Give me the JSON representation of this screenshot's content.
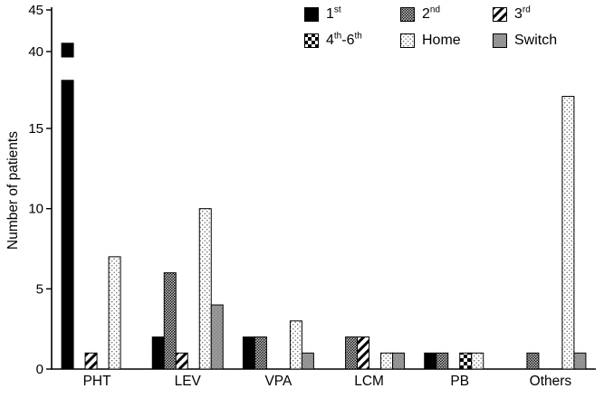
{
  "chart_data": {
    "type": "bar",
    "title": "",
    "ylabel": "Number of patients",
    "categories": [
      "PHT",
      "LEV",
      "VPA",
      "LCM",
      "PB",
      "Others"
    ],
    "series": [
      {
        "key": "1st",
        "label_parts": [
          {
            "t": "1"
          },
          {
            "t": "st",
            "sup": true
          }
        ],
        "pattern": "solid-black",
        "values": [
          41,
          2,
          2,
          0,
          1,
          0
        ]
      },
      {
        "key": "2nd",
        "label_parts": [
          {
            "t": "2"
          },
          {
            "t": "nd",
            "sup": true
          }
        ],
        "pattern": "dark-stipple",
        "values": [
          0,
          6,
          2,
          2,
          1,
          1
        ]
      },
      {
        "key": "3rd",
        "label_parts": [
          {
            "t": "3"
          },
          {
            "t": "rd",
            "sup": true
          }
        ],
        "pattern": "diagonal-hatch",
        "values": [
          1,
          1,
          0,
          2,
          0,
          0
        ]
      },
      {
        "key": "4th-6th",
        "label_parts": [
          {
            "t": "4"
          },
          {
            "t": "th",
            "sup": true
          },
          {
            "t": "-6"
          },
          {
            "t": "th",
            "sup": true
          }
        ],
        "pattern": "checkerboard",
        "values": [
          0,
          0,
          0,
          0,
          1,
          0
        ]
      },
      {
        "key": "Home",
        "label_parts": [
          {
            "t": "Home"
          }
        ],
        "pattern": "light-stipple",
        "values": [
          7,
          10,
          3,
          1,
          1,
          17
        ]
      },
      {
        "key": "Switch",
        "label_parts": [
          {
            "t": "Switch"
          }
        ],
        "pattern": "gray",
        "values": [
          0,
          4,
          1,
          1,
          0,
          1
        ]
      }
    ],
    "y_axis": {
      "lower_ticks": [
        0,
        5,
        10,
        15
      ],
      "upper_ticks": [
        40,
        45
      ],
      "break_between": [
        18,
        40
      ]
    },
    "xlabel": "",
    "legend_position": "top-right",
    "grid": false,
    "colors": {
      "axis": "#000000",
      "bar_outline": "#000000",
      "background": "#ffffff"
    }
  }
}
